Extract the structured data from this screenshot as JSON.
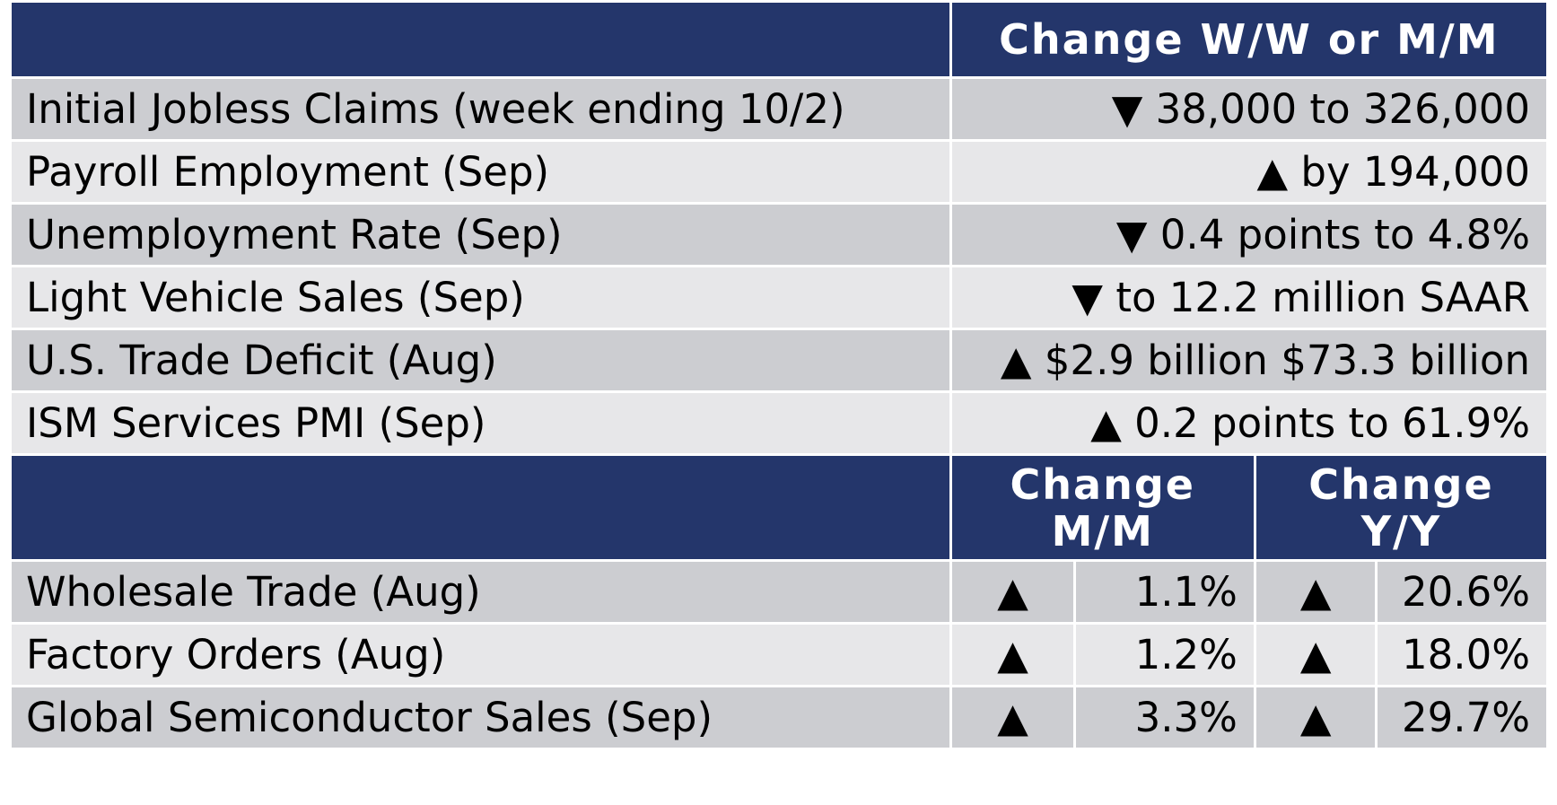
{
  "weekly_header": {
    "label": "",
    "change": "Change W/W or M/M"
  },
  "weekly_rows": [
    {
      "label": "Initial Jobless Claims (week ending 10/2)",
      "value": "▼ 38,000 to 326,000"
    },
    {
      "label": "Payroll Employment (Sep)",
      "value": "▲ by 194,000"
    },
    {
      "label": "Unemployment Rate (Sep)",
      "value": "▼ 0.4 points to 4.8%"
    },
    {
      "label": "Light Vehicle Sales (Sep)",
      "value": "▼ to 12.2 million SAAR"
    },
    {
      "label": "U.S. Trade Deficit (Aug)",
      "value": "▲ $2.9 billion $73.3 billion"
    },
    {
      "label": "ISM Services PMI (Sep)",
      "value": "▲ 0.2 points to 61.9%"
    }
  ],
  "monthly_header": {
    "label": "",
    "mm_line1": "Change",
    "mm_line2": "M/M",
    "yy_line1": "Change",
    "yy_line2": "Y/Y"
  },
  "monthly_rows": [
    {
      "label": "Wholesale Trade (Aug)",
      "mm_dir": "▲",
      "mm": "1.1%",
      "yy_dir": "▲",
      "yy": "20.6%"
    },
    {
      "label": "Factory Orders (Aug)",
      "mm_dir": "▲",
      "mm": "1.2%",
      "yy_dir": "▲",
      "yy": "18.0%"
    },
    {
      "label": "Global Semiconductor Sales (Sep)",
      "mm_dir": "▲",
      "mm": "3.3%",
      "yy_dir": "▲",
      "yy": "29.7%"
    }
  ]
}
